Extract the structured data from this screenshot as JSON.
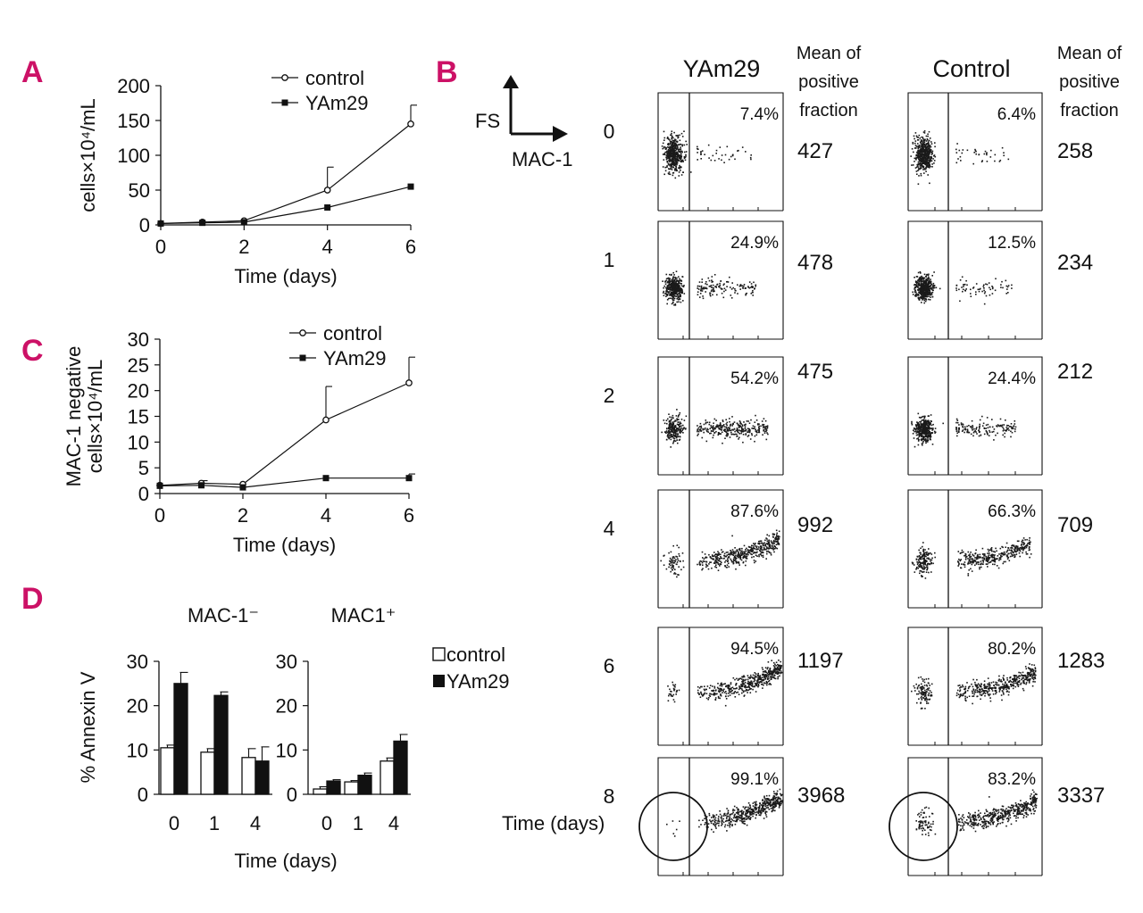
{
  "colors": {
    "label": "#cc1166",
    "ink": "#111111",
    "dots": "#1a1a1a"
  },
  "panel_labels": {
    "a": "A",
    "b": "B",
    "c": "C",
    "d": "D"
  },
  "chart_data": [
    {
      "id": "A",
      "type": "line",
      "ylabel": "cells×10⁴/mL",
      "xlabel": "Time (days)",
      "xlim": [
        0,
        6
      ],
      "ylim": [
        0,
        200
      ],
      "x_ticks": [
        "0",
        "2",
        "4",
        "6"
      ],
      "y_ticks": [
        "0",
        "50",
        "100",
        "150",
        "200"
      ],
      "series": [
        {
          "name": "control",
          "marker": "open-circle",
          "x": [
            0,
            1,
            2,
            4,
            6
          ],
          "values": [
            2,
            4,
            6,
            50,
            145
          ],
          "err": [
            0,
            0,
            0,
            33,
            27
          ]
        },
        {
          "name": "YAm29",
          "marker": "filled-square",
          "x": [
            0,
            1,
            2,
            4,
            6
          ],
          "values": [
            2,
            3,
            4,
            25,
            55
          ],
          "err": [
            0,
            0,
            0,
            0,
            0
          ]
        }
      ]
    },
    {
      "id": "C",
      "type": "line",
      "ylabel_lines": [
        "MAC-1 negative",
        "cells×10⁴/mL"
      ],
      "xlabel": "Time (days)",
      "xlim": [
        0,
        6
      ],
      "ylim": [
        0,
        30
      ],
      "x_ticks": [
        "0",
        "2",
        "4",
        "6"
      ],
      "y_ticks": [
        "0",
        "5",
        "10",
        "15",
        "20",
        "25",
        "30"
      ],
      "series": [
        {
          "name": "control",
          "marker": "open-circle",
          "x": [
            0,
            1,
            2,
            4,
            6
          ],
          "values": [
            1.6,
            2,
            1.8,
            14.3,
            21.5
          ],
          "err": [
            0,
            0.5,
            0,
            6.5,
            5
          ]
        },
        {
          "name": "YAm29",
          "marker": "filled-square",
          "x": [
            0,
            1,
            2,
            4,
            6
          ],
          "values": [
            1.5,
            1.6,
            1.2,
            3,
            3
          ],
          "err": [
            0,
            0,
            0,
            0,
            0.8
          ]
        }
      ]
    },
    {
      "id": "D",
      "type": "bar",
      "ylabel": "% Annexin V",
      "xlabel": "Time (days)",
      "ylim": [
        0,
        30
      ],
      "y_ticks": [
        "0",
        "10",
        "20",
        "30"
      ],
      "legend": [
        "control",
        "YAm29"
      ],
      "groups": [
        {
          "title": "MAC-1⁻",
          "categories": [
            "0",
            "1",
            "4"
          ],
          "series": [
            {
              "name": "control",
              "fill": "open",
              "values": [
                10.5,
                9.5,
                8.3
              ],
              "err": [
                0.6,
                0.8,
                2
              ]
            },
            {
              "name": "YAm29",
              "fill": "solid",
              "values": [
                25,
                22.3,
                7.5
              ],
              "err": [
                2.5,
                0.8,
                3.2
              ]
            }
          ]
        },
        {
          "title": "MAC1⁺",
          "categories": [
            "0",
            "1",
            "4"
          ],
          "series": [
            {
              "name": "control",
              "fill": "open",
              "values": [
                1.2,
                2.8,
                7.5
              ],
              "err": [
                0.5,
                0.3,
                0.7
              ]
            },
            {
              "name": "YAm29",
              "fill": "solid",
              "values": [
                3,
                4.3,
                12
              ],
              "err": [
                0.3,
                0.5,
                1.5
              ]
            }
          ]
        }
      ]
    },
    {
      "id": "B",
      "type": "scatter",
      "axis_y": "FS",
      "axis_x": "MAC-1",
      "columns": [
        "YAm29",
        "Control"
      ],
      "mean_header": [
        "Mean of",
        "positive",
        "fraction"
      ],
      "time_label": "Time (days)",
      "rows": [
        {
          "day": "0",
          "yam29": {
            "pct": "7.4%",
            "mean": "427",
            "positive_fraction": 0.074
          },
          "control": {
            "pct": "6.4%",
            "mean": "258",
            "positive_fraction": 0.064
          }
        },
        {
          "day": "1",
          "yam29": {
            "pct": "24.9%",
            "mean": "478",
            "positive_fraction": 0.249
          },
          "control": {
            "pct": "12.5%",
            "mean": "234",
            "positive_fraction": 0.125
          }
        },
        {
          "day": "2",
          "yam29": {
            "pct": "54.2%",
            "mean": "475",
            "positive_fraction": 0.542
          },
          "control": {
            "pct": "24.4%",
            "mean": "212",
            "positive_fraction": 0.244
          }
        },
        {
          "day": "4",
          "yam29": {
            "pct": "87.6%",
            "mean": "992",
            "positive_fraction": 0.876
          },
          "control": {
            "pct": "66.3%",
            "mean": "709",
            "positive_fraction": 0.663
          }
        },
        {
          "day": "6",
          "yam29": {
            "pct": "94.5%",
            "mean": "1197",
            "positive_fraction": 0.945
          },
          "control": {
            "pct": "80.2%",
            "mean": "1283",
            "positive_fraction": 0.802
          }
        },
        {
          "day": "8",
          "yam29": {
            "pct": "99.1%",
            "mean": "3968",
            "positive_fraction": 0.991
          },
          "control": {
            "pct": "83.2%",
            "mean": "3337",
            "positive_fraction": 0.832
          }
        }
      ]
    }
  ]
}
